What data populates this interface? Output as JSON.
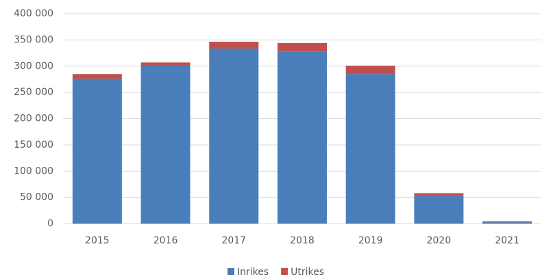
{
  "chart_data": {
    "type": "stacked_bar",
    "categories": [
      "2015",
      "2016",
      "2017",
      "2018",
      "2019",
      "2020",
      "2021"
    ],
    "series": [
      {
        "name": "Inrikes",
        "color": "#4a7ebb",
        "values": [
          276000,
          301000,
          333500,
          328000,
          285000,
          53000,
          2500
        ]
      },
      {
        "name": "Utrikes",
        "color": "#c0504d",
        "values": [
          9000,
          6000,
          13000,
          16000,
          16000,
          5000,
          2000
        ]
      }
    ],
    "ylim": [
      0,
      400000
    ],
    "yticks": [
      0,
      {
        "value": 50000,
        "label": "50 000"
      },
      {
        "value": 100000,
        "label": "100 000"
      },
      {
        "value": 150000,
        "label": "150 000"
      },
      {
        "value": 200000,
        "label": "200 000"
      },
      {
        "value": 250000,
        "label": "250 000"
      },
      {
        "value": 300000,
        "label": "300 000"
      },
      {
        "value": 350000,
        "label": "350 000"
      },
      {
        "value": 400000,
        "label": "400 000"
      }
    ],
    "grid": true,
    "legend": "bottom"
  }
}
